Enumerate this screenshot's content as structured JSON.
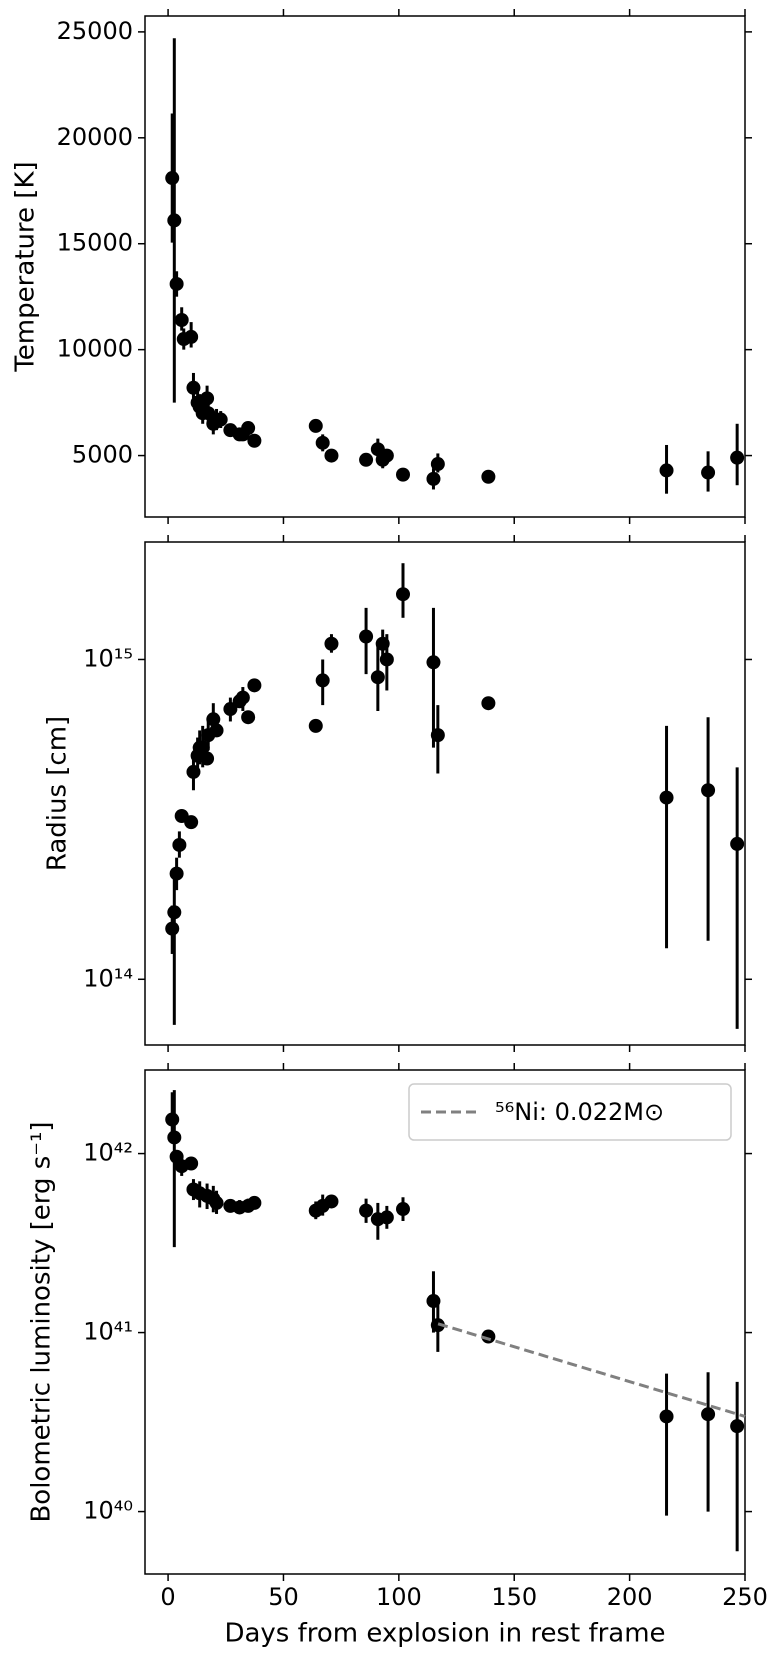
{
  "chart_data": [
    {
      "type": "scatter",
      "ylabel": "Temperature [K]",
      "color": "#000000",
      "log": false,
      "xlim": [
        -10,
        250
      ],
      "xticks": [
        0,
        50,
        100,
        150,
        200,
        250
      ],
      "ylim": [
        2100,
        25750
      ],
      "yticks": [
        5000,
        10000,
        15000,
        20000,
        25000
      ],
      "x": [
        1.8,
        2.7,
        3.7,
        5.9,
        6.8,
        10,
        11,
        12.8,
        13.7,
        15,
        16.9,
        17.4,
        19.6,
        21,
        22.8,
        27,
        31,
        32.4,
        34.7,
        37.4,
        64,
        67,
        70.8,
        85.8,
        90.9,
        93,
        94.8,
        101.8,
        115,
        116.9,
        138.8,
        216,
        234,
        246.6
      ],
      "values": [
        18100,
        16100,
        13100,
        11400,
        10500,
        10600,
        8200,
        7500,
        7300,
        7000,
        7700,
        7000,
        6500,
        6700,
        6700,
        6200,
        6000,
        6000,
        6300,
        5700,
        6400,
        5600,
        5000,
        4800,
        5300,
        4800,
        5000,
        4100,
        3900,
        4600,
        4000,
        4300,
        4200,
        4900
      ],
      "lower": [
        15050,
        7500,
        12500,
        10900,
        10000,
        10100,
        7700,
        7000,
        6800,
        6500,
        7200,
        6500,
        6000,
        6200,
        6300,
        null,
        null,
        null,
        6000,
        null,
        null,
        5200,
        null,
        null,
        4900,
        4400,
        4700,
        null,
        3400,
        4200,
        null,
        3200,
        3300,
        3600
      ],
      "upper": [
        21150,
        24700,
        13700,
        12000,
        11000,
        11300,
        8900,
        8000,
        7900,
        7500,
        8300,
        7500,
        7000,
        7200,
        7100,
        null,
        null,
        null,
        6600,
        null,
        null,
        6000,
        null,
        null,
        5800,
        5200,
        5300,
        null,
        4400,
        5100,
        null,
        5500,
        5200,
        6500
      ]
    },
    {
      "type": "scatter",
      "ylabel": "Radius [cm]",
      "color": "#000000",
      "log": true,
      "xlim": [
        -10,
        250
      ],
      "xticks": [
        0,
        50,
        100,
        150,
        200,
        250
      ],
      "ylim": [
        62300000000000.0,
        2330000000000000.0
      ],
      "yticks": [
        {
          "value": 100000000000000.0,
          "label": "10¹⁴"
        },
        {
          "value": 1000000000000000.0,
          "label": "10¹⁵"
        }
      ],
      "x": [
        1.8,
        2.7,
        3.7,
        4.9,
        5.9,
        10,
        11,
        12.8,
        13.7,
        15,
        16.9,
        17.4,
        19.6,
        21,
        27,
        31,
        32.4,
        34.7,
        37.4,
        64,
        67,
        70.8,
        85.8,
        90.9,
        93,
        94.8,
        101.8,
        115,
        116.9,
        138.8,
        216,
        234,
        246.6
      ],
      "values": [
        144000000000000.0,
        162000000000000.0,
        214000000000000.0,
        263000000000000.0,
        324000000000000.0,
        310000000000000.0,
        445000000000000.0,
        500000000000000.0,
        530000000000000.0,
        530000000000000.0,
        490000000000000.0,
        580000000000000.0,
        650000000000000.0,
        600000000000000.0,
        700000000000000.0,
        740000000000000.0,
        760000000000000.0,
        660000000000000.0,
        830000000000000.0,
        620000000000000.0,
        860000000000000.0,
        1120000000000000.0,
        1180000000000000.0,
        880000000000000.0,
        1120000000000000.0,
        1000000000000000.0,
        1600000000000000.0,
        980000000000000.0,
        580000000000000.0,
        730000000000000.0,
        370000000000000.0,
        390000000000000.0,
        265000000000000.0
      ],
      "lower": [
        120000000000000.0,
        72000000000000.0,
        190000000000000.0,
        240000000000000.0,
        null,
        null,
        390000000000000.0,
        440000000000000.0,
        470000000000000.0,
        460000000000000.0,
        null,
        520000000000000.0,
        580000000000000.0,
        null,
        640000000000000.0,
        null,
        690000000000000.0,
        null,
        null,
        null,
        720000000000000.0,
        1050000000000000.0,
        900000000000000.0,
        690000000000000.0,
        1000000000000000.0,
        800000000000000.0,
        1350000000000000.0,
        530000000000000.0,
        440000000000000.0,
        null,
        125000000000000.0,
        132000000000000.0,
        70000000000000.0
      ],
      "upper": [
        170000000000000.0,
        220000000000000.0,
        240000000000000.0,
        290000000000000.0,
        null,
        null,
        500000000000000.0,
        570000000000000.0,
        600000000000000.0,
        620000000000000.0,
        null,
        640000000000000.0,
        730000000000000.0,
        null,
        760000000000000.0,
        null,
        820000000000000.0,
        null,
        null,
        null,
        1000000000000000.0,
        1200000000000000.0,
        1450000000000000.0,
        1100000000000000.0,
        1240000000000000.0,
        1200000000000000.0,
        2000000000000000.0,
        1450000000000000.0,
        720000000000000.0,
        null,
        620000000000000.0,
        660000000000000.0,
        460000000000000.0
      ]
    },
    {
      "type": "scatter",
      "ylabel": "Bolometric luminosity [erg s⁻¹]",
      "xlabel": "Days from explosion in rest frame",
      "color": "#000000",
      "log": true,
      "xlim": [
        -10,
        250
      ],
      "xticks": [
        0,
        50,
        100,
        150,
        200,
        250
      ],
      "ylim": [
        4.48e+39,
        2.93e+42
      ],
      "yticks": [
        {
          "value": 1e+40,
          "label": "10⁴⁰"
        },
        {
          "value": 1e+41,
          "label": "10⁴¹"
        },
        {
          "value": 1e+42,
          "label": "10⁴²"
        }
      ],
      "x": [
        1.8,
        2.7,
        3.7,
        5.9,
        10,
        11,
        13.7,
        16.9,
        19.6,
        21,
        27,
        31,
        34.7,
        37.4,
        64,
        67,
        70.8,
        85.8,
        90.9,
        94.8,
        101.8,
        115,
        116.9,
        138.8,
        216,
        234,
        246.6
      ],
      "values": [
        1.55e+42,
        1.23e+42,
        9.6e+41,
        8.5e+41,
        8.8e+41,
        6.3e+41,
        6e+41,
        5.8e+41,
        5.6e+41,
        5.3e+41,
        5.1e+41,
        5e+41,
        5.1e+41,
        5.3e+41,
        4.8e+41,
        5.1e+41,
        5.4e+41,
        4.8e+41,
        4.3e+41,
        4.4e+41,
        4.9e+41,
        1.5e+41,
        1.1e+41,
        9.5e+40,
        3.4e+40,
        3.5e+40,
        3e+40
      ],
      "lower": [
        1.2e+42,
        3e+41,
        null,
        7.5e+41,
        null,
        5.5e+41,
        5e+41,
        4.9e+41,
        4.7e+41,
        4.6e+41,
        null,
        4.6e+41,
        4.7e+41,
        null,
        4.3e+41,
        4.5e+41,
        null,
        4.1e+41,
        3.3e+41,
        3.8e+41,
        4.2e+41,
        1e+41,
        7.8e+40,
        null,
        9.5e+39,
        1e+40,
        6e+39
      ],
      "upper": [
        2.2e+42,
        2.26e+42,
        null,
        9.6e+41,
        null,
        7.2e+41,
        7e+41,
        6.8e+41,
        6.6e+41,
        6.2e+41,
        null,
        5.5e+41,
        5.6e+41,
        null,
        5.4e+41,
        5.9e+41,
        null,
        5.6e+41,
        5.3e+41,
        5.1e+41,
        5.7e+41,
        2.2e+41,
        1.5e+41,
        null,
        5.9e+40,
        6e+40,
        5.3e+40
      ],
      "legend": "upper right",
      "series": [
        {
          "name": "⁵⁶Ni: 0.022M⊙",
          "color": "#808080",
          "x": [
            117,
            250
          ],
          "values": [
            1.12e+41,
            3.4e+40
          ]
        }
      ]
    }
  ]
}
